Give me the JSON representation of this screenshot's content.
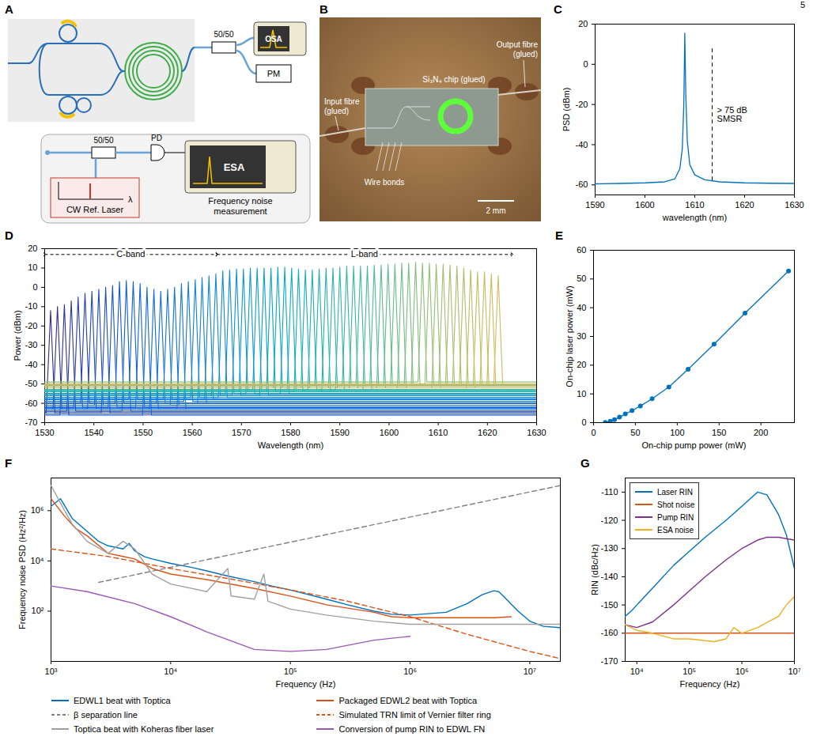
{
  "page": "5",
  "chart_data": [
    {
      "panel": "A",
      "type": "diagram",
      "labels": {
        "splitter_out": "50/50",
        "osa": "OSA",
        "pm": "PM",
        "splitter_ref": "50/50",
        "pd": "PD",
        "esa": "ESA",
        "ref_laser": "CW Ref. Laser",
        "wavelength_symbol": "λ",
        "caption": "Frequency noise measurement"
      }
    },
    {
      "panel": "B",
      "type": "image",
      "labels": {
        "chip": "Si₃N₄ chip (glued)",
        "input": "Input fibre (glued)",
        "output": "Output fibre (glued)",
        "bonds": "Wire bonds",
        "scale_bar": "2 mm"
      }
    },
    {
      "panel": "C",
      "type": "line",
      "xlabel": "wavelength (nm)",
      "ylabel": "PSD (dBm)",
      "x": [
        1590,
        1595,
        1600,
        1604,
        1606,
        1607,
        1607.5,
        1607.8,
        1608,
        1608.2,
        1608.5,
        1609,
        1610,
        1612,
        1615,
        1620,
        1625,
        1630
      ],
      "values": [
        -59.5,
        -59.3,
        -59,
        -58.5,
        -57,
        -52,
        -42,
        -20,
        15.5,
        -15,
        -38,
        -50,
        -55,
        -57.5,
        -58.5,
        -59,
        -59.2,
        -59.3
      ],
      "color": "#0072bd",
      "xlim": [
        1590,
        1630
      ],
      "ylim": [
        -65,
        20
      ],
      "xticks": [
        1590,
        1600,
        1610,
        1620,
        1630
      ],
      "yticks": [
        -60,
        -40,
        -20,
        0,
        20
      ],
      "grid": false,
      "annotation": {
        "x": 1613.5,
        "y": [
          -58,
          8
        ],
        "lines": [
          "> 75 dB",
          "SMSR"
        ]
      }
    },
    {
      "panel": "D",
      "type": "line",
      "xlabel": "Wavelength (nm)",
      "ylabel": "Power (dBm)",
      "x": [
        1531.2,
        1532.6,
        1534.0,
        1535.4,
        1536.8,
        1538.2,
        1539.6,
        1541.0,
        1542.4,
        1543.8,
        1545.2,
        1546.6,
        1548.0,
        1549.4,
        1550.8,
        1552.2,
        1553.6,
        1555.0,
        1556.4,
        1557.8,
        1559.2,
        1560.6,
        1562.0,
        1563.4,
        1564.8,
        1566.2,
        1567.6,
        1569.0,
        1570.4,
        1571.8,
        1573.2,
        1574.6,
        1576.0,
        1577.4,
        1578.8,
        1580.2,
        1581.6,
        1583.0,
        1584.4,
        1585.8,
        1587.2,
        1588.6,
        1590.0,
        1591.4,
        1592.8,
        1594.2,
        1595.6,
        1597.0,
        1598.4,
        1599.8,
        1601.2,
        1602.6,
        1604.0,
        1605.4,
        1606.8,
        1608.2,
        1609.6,
        1611.0,
        1612.4,
        1613.8,
        1615.2,
        1616.6,
        1618.0,
        1619.4,
        1620.8,
        1622.2
      ],
      "values": [
        -12,
        -10,
        -9,
        -7,
        -5,
        -3,
        -2,
        -1,
        0,
        1,
        3,
        3.5,
        3,
        2,
        0,
        -1,
        -2,
        -1,
        0,
        2,
        3,
        4,
        5,
        6,
        7,
        8.5,
        9,
        9.5,
        9.5,
        10,
        10,
        10,
        10,
        10.5,
        10.5,
        10,
        9.5,
        9,
        9,
        9.5,
        10,
        10,
        10.5,
        11,
        11,
        11,
        11,
        11.5,
        11.5,
        12,
        12,
        12.5,
        12.5,
        13,
        12.5,
        12.5,
        12,
        12,
        11.5,
        11,
        10,
        9,
        8,
        8,
        7,
        6
      ],
      "noise_floor": [
        -65,
        -63,
        -66,
        -64,
        -62,
        -60,
        -63,
        -61,
        -65,
        -62,
        -60,
        -64,
        -58,
        -62,
        -66,
        -63,
        -60,
        -58,
        -61,
        -63,
        -59,
        -57,
        -60,
        -58,
        -56,
        -57,
        -55,
        -56,
        -54,
        -55,
        -53,
        -56,
        -54,
        -52,
        -55,
        -53,
        -54,
        -52,
        -53,
        -51,
        -54,
        -52,
        -53,
        -51,
        -52,
        -50,
        -53,
        -51,
        -52,
        -50,
        -51,
        -52,
        -50,
        -51,
        -49,
        -50,
        -52,
        -51,
        -50,
        -51,
        -50,
        -52,
        -51,
        -50,
        -51,
        -50
      ],
      "colors": [
        "#352a87",
        "#322f8f",
        "#2e3397",
        "#2b389e",
        "#273ca6",
        "#2441ae",
        "#2045b6",
        "#1d4abe",
        "#194ec5",
        "#1653cd",
        "#1257d5",
        "#0f5cdd",
        "#0f5fdc",
        "#1063db",
        "#1166da",
        "#116ada",
        "#116dd9",
        "#1170d8",
        "#1274d7",
        "#1277d6",
        "#137ad6",
        "#137ed5",
        "#1481d4",
        "#1384d3",
        "#1188d1",
        "#108bd0",
        "#0f8fcf",
        "#0d92ce",
        "#0c96cc",
        "#0b99cb",
        "#0a9dca",
        "#08a0c8",
        "#07a4c7",
        "#06a7c6",
        "#0ba9c2",
        "#0faabf",
        "#14acbb",
        "#18aeb8",
        "#1dafb4",
        "#21b1b0",
        "#26b2ad",
        "#2ab4a9",
        "#2fb6a6",
        "#33b7a2",
        "#38b99e",
        "#40ba9a",
        "#48ba96",
        "#51bb92",
        "#59bb8e",
        "#61bc8a",
        "#69bc87",
        "#71bd83",
        "#7abd7f",
        "#82be7b",
        "#8abe77",
        "#92bf73",
        "#98bf70",
        "#9fbe6e",
        "#a5be6b",
        "#abbd69",
        "#b2bd66",
        "#b8bd63",
        "#bebc61",
        "#c5bc5e",
        "#cbbb5c",
        "#d1bb59"
      ],
      "bands": [
        {
          "label": "C-band",
          "start": 1530,
          "end": 1565,
          "y": 17
        },
        {
          "label": "L-band",
          "start": 1565,
          "end": 1625,
          "y": 17
        }
      ],
      "xlim": [
        1530,
        1630
      ],
      "ylim": [
        -70,
        20
      ],
      "xticks": [
        1530,
        1540,
        1550,
        1560,
        1570,
        1580,
        1590,
        1600,
        1610,
        1620,
        1630
      ],
      "yticks": [
        -70,
        -60,
        -50,
        -40,
        -30,
        -20,
        -10,
        0,
        10,
        20
      ],
      "grid": false
    },
    {
      "panel": "E",
      "type": "line",
      "marker": "circle",
      "xlabel": "On-chip pump power (mW)",
      "ylabel": "On-chip laser power (mW)",
      "x": [
        14,
        20,
        25,
        31,
        38,
        46,
        56,
        70,
        90,
        113,
        144,
        181,
        233
      ],
      "values": [
        0.1,
        0.5,
        1.0,
        1.9,
        3.0,
        4.2,
        5.8,
        8.3,
        12.4,
        18.6,
        27.3,
        38.1,
        52.8
      ],
      "color": "#0072bd",
      "xlim": [
        0,
        240
      ],
      "ylim": [
        0,
        60
      ],
      "xticks": [
        0,
        50,
        100,
        150,
        200
      ],
      "yticks": [
        0,
        10,
        20,
        30,
        40,
        50,
        60
      ],
      "grid": false
    },
    {
      "panel": "F",
      "type": "line",
      "log": true,
      "legend": "bottom",
      "grid": false,
      "xlabel": "Frequency (Hz)",
      "ylabel": "Frequency noise PSD (Hz²/Hz)",
      "xlim": [
        1000,
        18000000
      ],
      "ylim": [
        1,
        20000000
      ],
      "xticks": [
        {
          "value": 1000,
          "label": "10³"
        },
        {
          "value": 10000,
          "label": "10⁴"
        },
        {
          "value": 100000,
          "label": "10⁵"
        },
        {
          "value": 1000000,
          "label": "10⁶"
        },
        {
          "value": 10000000,
          "label": "10⁷"
        }
      ],
      "yticks": [
        {
          "value": 100,
          "label": "10²"
        },
        {
          "value": 10000,
          "label": "10⁴"
        },
        {
          "value": 1000000,
          "label": "10⁶"
        }
      ],
      "series": [
        {
          "name": "EDWL1 beat with Toptica",
          "color": "#0072bd",
          "line_style": "solid",
          "x": [
            1000,
            1200,
            1500,
            2000,
            2500,
            3000,
            4000,
            4500,
            5000,
            6000,
            7000,
            10000,
            15000,
            20000,
            30000,
            50000,
            70000,
            100000,
            200000,
            300000,
            500000,
            700000,
            1000000,
            2000000,
            3000000,
            4000000,
            5000000,
            5500000,
            6000000,
            8000000,
            10000000,
            13000000,
            18000000
          ],
          "values": [
            1500000,
            3000000,
            500000,
            150000,
            60000,
            40000,
            30000,
            50000,
            25000,
            15000,
            12000,
            8000,
            5500,
            4000,
            2500,
            1500,
            1000,
            700,
            300,
            180,
            100,
            75,
            70,
            90,
            200,
            450,
            650,
            600,
            400,
            100,
            40,
            25,
            22
          ]
        },
        {
          "name": "Packaged EDWL2 beat with Toptica",
          "color": "#d95319",
          "line_style": "solid",
          "x": [
            1000,
            1300,
            1600,
            2000,
            3000,
            4000,
            5000,
            7000,
            10000,
            20000,
            50000,
            100000,
            200000,
            500000,
            700000,
            1000000,
            2000000,
            5000000,
            7000000
          ],
          "values": [
            3000000,
            600000,
            200000,
            100000,
            20000,
            15000,
            12000,
            5000,
            3000,
            1800,
            800,
            400,
            180,
            90,
            60,
            55,
            55,
            55,
            60
          ]
        },
        {
          "name": "β separation line",
          "color": "#808080",
          "line_style": "dashed",
          "x": [
            2500,
            18000000
          ],
          "values": [
            1400,
            10000000
          ]
        },
        {
          "name": "Simulated TRN limit of Vernier filter ring",
          "color": "#d95319",
          "line_style": "dashed",
          "x": [
            1000,
            3000,
            10000,
            30000,
            100000,
            300000,
            1000000,
            3000000,
            10000000,
            18000000
          ],
          "values": [
            30000,
            15000,
            5000,
            2000,
            700,
            250,
            60,
            12,
            2.5,
            1.3
          ]
        },
        {
          "name": "Toptica beat with Koheras fiber laser",
          "color": "#a0a0a0",
          "line_style": "solid",
          "x": [
            1000,
            1300,
            1500,
            2000,
            3000,
            4000,
            5000,
            7000,
            10000,
            20000,
            30000,
            32000,
            50000,
            60000,
            65000,
            100000,
            200000,
            500000,
            1000000,
            2000000,
            10000000,
            18000000
          ],
          "values": [
            10000000,
            1000000,
            300000,
            60000,
            20000,
            60000,
            30000,
            3000,
            1200,
            600,
            5000,
            400,
            300,
            3000,
            250,
            120,
            70,
            40,
            30,
            30,
            30,
            30
          ]
        },
        {
          "name": "Conversion of pump RIN to EDWL FN",
          "color": "#9b59b6",
          "line_style": "solid",
          "x": [
            1000,
            2000,
            5000,
            10000,
            20000,
            50000,
            100000,
            200000,
            500000,
            1000000
          ],
          "values": [
            1000,
            600,
            200,
            60,
            15,
            3,
            2.5,
            3,
            7,
            10
          ]
        }
      ]
    },
    {
      "panel": "G",
      "type": "line",
      "log": "x",
      "legend": "top-left",
      "grid": false,
      "xlabel": "Frequency (Hz)",
      "ylabel": "RIN (dBc/Hz)",
      "xlim": [
        6000,
        10000000
      ],
      "ylim": [
        -170,
        -105
      ],
      "xticks": [
        {
          "value": 10000,
          "label": "10⁴"
        },
        {
          "value": 100000,
          "label": "10⁵"
        },
        {
          "value": 1000000,
          "label": "10⁶"
        },
        {
          "value": 10000000,
          "label": "10⁷"
        }
      ],
      "yticks": [
        -170,
        -160,
        -150,
        -140,
        -130,
        -120,
        -110
      ],
      "series": [
        {
          "name": "Laser RIN",
          "color": "#0072bd",
          "line_style": "solid",
          "x": [
            6000,
            8000,
            10000,
            20000,
            50000,
            100000,
            200000,
            500000,
            1000000,
            2000000,
            3000000,
            5000000,
            7000000,
            10000000
          ],
          "values": [
            -154,
            -152,
            -150,
            -144,
            -136,
            -131,
            -126,
            -120,
            -115,
            -110,
            -111,
            -118,
            -125,
            -137
          ]
        },
        {
          "name": "Shot noise",
          "color": "#d95319",
          "line_style": "solid",
          "x": [
            6000,
            10000000
          ],
          "values": [
            -160,
            -160
          ]
        },
        {
          "name": "Pump RIN",
          "color": "#7e2f8e",
          "line_style": "solid",
          "x": [
            6000,
            10000,
            20000,
            50000,
            100000,
            200000,
            500000,
            1000000,
            2000000,
            3000000,
            5000000,
            10000000
          ],
          "values": [
            -157,
            -158,
            -156,
            -150,
            -145,
            -140,
            -134,
            -130,
            -127,
            -126,
            -126,
            -127
          ]
        },
        {
          "name": "ESA noise",
          "color": "#edb120",
          "line_style": "solid",
          "x": [
            6000,
            10000,
            20000,
            50000,
            100000,
            300000,
            500000,
            700000,
            1000000,
            2000000,
            5000000,
            7000000,
            10000000
          ],
          "values": [
            -157,
            -159,
            -160,
            -162,
            -162,
            -163,
            -162,
            -158,
            -160,
            -158,
            -154,
            -150,
            -147
          ]
        }
      ]
    }
  ]
}
